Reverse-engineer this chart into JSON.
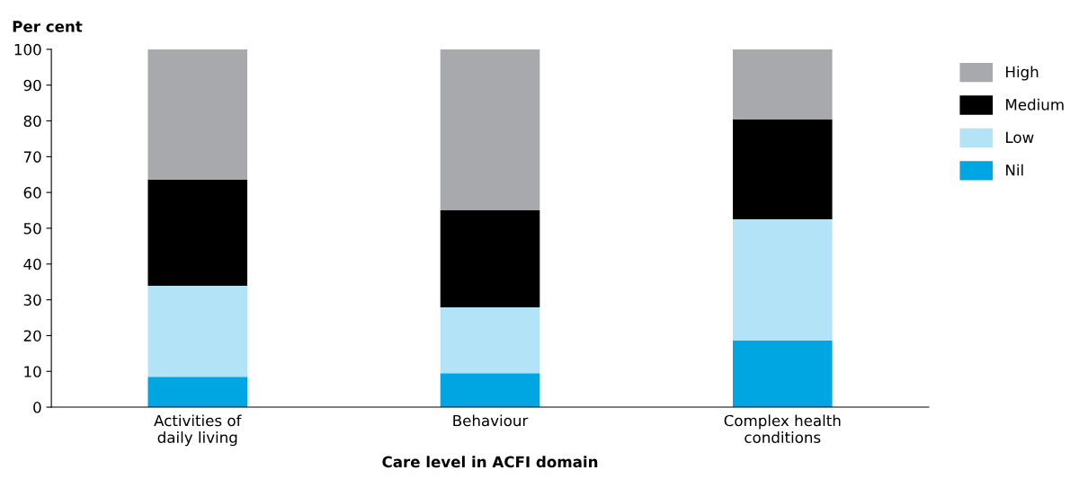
{
  "chart_data": {
    "type": "bar",
    "stacked": true,
    "ylabel": "Per cent",
    "xlabel": "Care level in ACFI domain",
    "categories": [
      "Activities of\ndaily living",
      "Behaviour",
      "Complex health\nconditions"
    ],
    "series": [
      {
        "name": "Nil",
        "color": "#00a6e2",
        "values": [
          8.5,
          9.5,
          18.6
        ]
      },
      {
        "name": "Low",
        "color": "#b3e3f7",
        "values": [
          25.4,
          18.4,
          33.9
        ]
      },
      {
        "name": "Medium",
        "color": "#000000",
        "values": [
          29.7,
          27.1,
          27.9
        ]
      },
      {
        "name": "High",
        "color": "#a7a9ac",
        "values": [
          36.4,
          45.0,
          19.6
        ]
      }
    ],
    "ylim": [
      0,
      100
    ],
    "yticks": [
      0,
      10,
      20,
      30,
      40,
      50,
      60,
      70,
      80,
      90,
      100
    ],
    "grid": false,
    "legend": "right"
  }
}
